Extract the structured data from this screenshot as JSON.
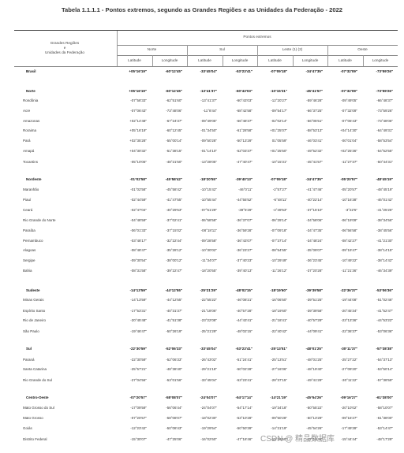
{
  "title": "Tabela 1.1.1.1 - Pontos extremos, segundo as Grandes Regiões e as Unidades da Federação - 2022",
  "header": {
    "row_label": "Grandes Regiões\ne\nUnidades da Federação",
    "group": "Pontos extremos",
    "directions": [
      "Norte",
      "Sul",
      "Leste (1) (2)",
      "Oeste"
    ],
    "sub": [
      "Latitude",
      "Longitude"
    ]
  },
  "rows": [
    {
      "name": "Brasil",
      "type": "total",
      "v": [
        "+05°16'19\"",
        "-60°12'45\"",
        "-33°45'04\"",
        "-53°23'41\"",
        "-07°09'18\"",
        "-34°47'35\"",
        "-07°32'09\"",
        "-73°59'26\""
      ]
    },
    {
      "name": "Norte",
      "type": "group",
      "v": [
        "+05°16'19\"",
        "-60°12'45\"",
        "-13°41'37\"",
        "-60°43'03\"",
        "-10°15'31\"",
        "-45°41'57\"",
        "-07°32'09\"",
        "-73°59'26\""
      ]
    },
    {
      "name": "Rondônia",
      "type": "item",
      "v": [
        "-07°58'33\"",
        "-62°51'60\"",
        "-13°41'37\"",
        "-60°43'03\"",
        "-12°20'27\"",
        "-59°46'28\"",
        "-09°49'05\"",
        "-66°48'37\""
      ]
    },
    {
      "name": "Acre",
      "type": "item",
      "v": [
        "-07°06'43\"",
        "-73°48'06\"",
        "-11°8'44\"",
        "-68°42'58\"",
        "-09°54'17\"",
        "-66°37'25\"",
        "-07°32'09\"",
        "-73°59'26\""
      ]
    },
    {
      "name": "Amazonas",
      "type": "item",
      "v": [
        "+02°14'48\"",
        "-67°24'37\"",
        "-09°49'05\"",
        "-66°48'37\"",
        "-02°02'14\"",
        "-56°05'51\"",
        "-07°06'43\"",
        "-73°48'06\""
      ]
    },
    {
      "name": "Roraima",
      "type": "item",
      "v": [
        "+05°16'19\"",
        "-60°12'45\"",
        "-01°34'50\"",
        "-61°28'58\"",
        "+01°25'07\"",
        "-58°53'13\"",
        "+04°14'30\"",
        "-64°49'31\""
      ]
    },
    {
      "name": "Pará",
      "type": "item",
      "v": [
        "+02°35'28\"",
        "-55°00'14\"",
        "-09°50'28\"",
        "-50°13'29\"",
        "01°05'59\"",
        "-46°03'41\"",
        "-00°01'04\"",
        "-58°53'54\""
      ]
    },
    {
      "name": "Amapá",
      "type": "item",
      "v": [
        "+04°30'32\"",
        "-51°38'15\"",
        "-01°14'10\"",
        "-52°03'37\"",
        "+01°25'50\"",
        "-49°52'32\"",
        "+02°25'36\"",
        "-54°52'55\""
      ]
    },
    {
      "name": "Tocantins",
      "type": "item",
      "v": [
        "-05°10'06\"",
        "-48°21'50\"",
        "-13°28'05\"",
        "-47°40'47\"",
        "-10°15'31\"",
        "-45°41'57\"",
        "-11°27'37\"",
        "-50°44'31\""
      ]
    },
    {
      "name": "Nordeste",
      "type": "group",
      "v": [
        "-01°02'58\"",
        "-45°58'42\"",
        "-18°20'55\"",
        "-39°40'13\"",
        "-07°09'18\"",
        "-34°47'35\"",
        "-05°20'57\"",
        "-48°45'19\""
      ]
    },
    {
      "name": "Maranhão",
      "type": "item",
      "v": [
        "-01°02'58\"",
        "-45°58'42\"",
        "-10°15'42\"",
        "-46°0'11\"",
        "-2°57'27\"",
        "-41°47'46\"",
        "-05°20'57\"",
        "-48°45'19\""
      ]
    },
    {
      "name": "Piauí",
      "type": "item",
      "v": [
        "-02°44'59\"",
        "-41°47'55\"",
        "-10°55'44\"",
        "-44°55'52\"",
        "-6°48'11\"",
        "-40°22'14\"",
        "-10°16'38\"",
        "-46°01'42\""
      ]
    },
    {
      "name": "Ceará",
      "type": "item",
      "v": [
        "-02°47'04\"",
        "-40°29'53\"",
        "-07°51'29\"",
        "-39°5'29\"",
        "-4°49'53\"",
        "-37°15'10\"",
        "-3°22'5\"",
        "-41°25'25\""
      ]
    },
    {
      "name": "Rio Grande do Norte",
      "type": "item",
      "v": [
        "-04°48'59\"",
        "-37°02'41\"",
        "-06°58'58\"",
        "-36°37'07\"",
        "-06°29'14\"",
        "-34°58'06\"",
        "-06°19'09\"",
        "-38°34'56\""
      ]
    },
    {
      "name": "Paraíba",
      "type": "item",
      "v": [
        "-06°01'33\"",
        "-37°15'02\"",
        "-08°18'11\"",
        "-36°59'28\"",
        "-07°09'18\"",
        "-34°47'35\"",
        "-06°56'58\"",
        "-38°45'56\""
      ]
    },
    {
      "name": "Pernambuco",
      "type": "item",
      "v": [
        "-03°48'17\"",
        "-32°22'44\"",
        "-09°28'58\"",
        "-36°43'07\"",
        "-07°37'14\"",
        "-34°48'24\"",
        "-08°42'27\"",
        "-41°21'30\""
      ]
    },
    {
      "name": "Alagoas",
      "type": "item",
      "v": [
        "-08°48'47\"",
        "-35°28'12\"",
        "-10°30'02\"",
        "-36°23'27\"",
        "-08°54'55\"",
        "-35°09'07\"",
        "-09°19'47\"",
        "-38°14'15\""
      ]
    },
    {
      "name": "Sergipe",
      "type": "item",
      "v": [
        "-09°30'54\"",
        "-38°00'12\"",
        "-11°34'07\"",
        "-37°40'23\"",
        "-10°29'49\"",
        "-36°23'45\"",
        "-10°49'22\"",
        "-38°14'42\""
      ]
    },
    {
      "name": "Bahia",
      "type": "item",
      "v": [
        "-08°31'58\"",
        "-39°22'47\"",
        "-18°20'55\"",
        "-39°40'13\"",
        "-11°26'12\"",
        "-37°20'28\"",
        "-11°21'36\"",
        "-46°34'39\""
      ]
    },
    {
      "name": "Sudeste",
      "type": "group",
      "v": [
        "-14°13'59\"",
        "-44°12'55\"",
        "-25°21'29\"",
        "-48°02'15\"",
        "-18°19'60\"",
        "-39°39'58\"",
        "-22°36'37\"",
        "-53°06'36\""
      ]
    },
    {
      "name": "Minas Gerais",
      "type": "item",
      "v": [
        "-14°13'59\"",
        "-44°12'55\"",
        "-22°55'22\"",
        "-46°08'21\"",
        "-16°06'50\"",
        "-39°51'25\"",
        "-19°44'08\"",
        "-51°02'46\""
      ]
    },
    {
      "name": "Espírito Santo",
      "type": "item",
      "v": [
        "-17°53'31\"",
        "-40°31'37\"",
        "-21°18'06\"",
        "-40°57'28\"",
        "-18°19'60\"",
        "-39°39'58\"",
        "-20°45'34\"",
        "-41°52'47\""
      ]
    },
    {
      "name": "Rio de Janeiro",
      "type": "item",
      "v": [
        "-20°45'48\"",
        "-41°51'38\"",
        "-23°22'08\"",
        "-44°43'41\"",
        "-21°18'41\"",
        "-40°57'29\"",
        "-23°13'36\"",
        "-44°53'22\""
      ]
    },
    {
      "name": "São Paulo",
      "type": "item",
      "v": [
        "-19°46'47\"",
        "-50°26'19\"",
        "-25°21'29\"",
        "-48°02'15\"",
        "-22°40'42\"",
        "-44°09'41\"",
        "-22°36'37\"",
        "-53°06'36\""
      ]
    },
    {
      "name": "Sul",
      "type": "group",
      "v": [
        "-22°30'59\"",
        "-52°06'33\"",
        "-33°45'04\"",
        "-53°23'41\"",
        "-25°13'51\"",
        "-48°01'25\"",
        "-30°11'37\"",
        "-57°38'38\""
      ]
    },
    {
      "name": "Paraná",
      "type": "item",
      "v": [
        "-22°30'59\"",
        "-52°06'33\"",
        "-26°43'02\"",
        "-51°24'41\"",
        "-25°13'51\"",
        "-48°01'25\"",
        "-25°27'22\"",
        "-54°37'13\""
      ]
    },
    {
      "name": "Santa Catarina",
      "type": "item",
      "v": [
        "-25°57'21\"",
        "-48°38'40\"",
        "-29°21'18\"",
        "-50°02'28\"",
        "-27°16'06\"",
        "-48°19'40\"",
        "-27°09'20\"",
        "-53°50'14\""
      ]
    },
    {
      "name": "Rio Grande do Sul",
      "type": "item",
      "v": [
        "-27°04'56\"",
        "-53°01'56\"",
        "-33°45'04\"",
        "-53°23'41\"",
        "-28°37'15\"",
        "-49°41'29\"",
        "-30°11'22\"",
        "-57°38'59\""
      ]
    },
    {
      "name": "Centro-Oeste",
      "type": "group",
      "v": [
        "-07°20'57\"",
        "-58°08'07\"",
        "-24°04'07\"",
        "-54°17'14\"",
        "-14°21'19\"",
        "-45°54'26\"",
        "-09°16'27\"",
        "-61°38'00\""
      ]
    },
    {
      "name": "Mato Grosso do Sul",
      "type": "item",
      "v": [
        "-17°09'59\"",
        "-56°06'44\"",
        "-24°04'07\"",
        "-54°17'14\"",
        "-19°34'18\"",
        "-50°55'22\"",
        "-20°10'02\"",
        "-58°10'07\""
      ]
    },
    {
      "name": "Mato Grosso",
      "type": "item",
      "v": [
        "-07°20'57\"",
        "-58°08'07\"",
        "-18°02'30\"",
        "-53°10'28\"",
        "-09°50'28\"",
        "-50°13'29\"",
        "-09°16'27\"",
        "-61°38'00\""
      ]
    },
    {
      "name": "Goiás",
      "type": "item",
      "v": [
        "-12°23'42\"",
        "-50°08'43\"",
        "-19°29'54\"",
        "-50°50'39\"",
        "-14°21'19\"",
        "-45°54'26\"",
        "-17°49'39\"",
        "-53°14'47\""
      ]
    },
    {
      "name": "Distrito Federal",
      "type": "item",
      "v": [
        "-15°30'07\"",
        "-47°25'06\"",
        "-16°02'60\"",
        "-47°18'46\"",
        "-15°46'50\"",
        "-47°18'44\"",
        "-15°44'44\"",
        "-48°17'29\""
      ]
    }
  ],
  "watermark": "CSDN @ 精品数据库"
}
